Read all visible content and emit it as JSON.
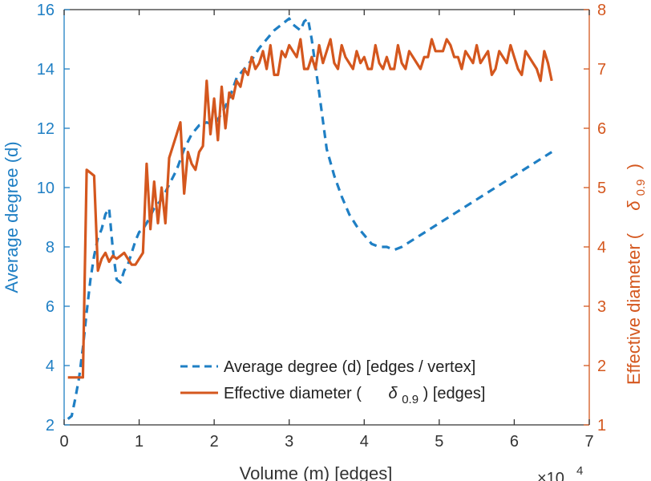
{
  "chart_data": {
    "type": "line",
    "title": "",
    "xlabel": "Volume (m) [edges]",
    "x_exponent_label": "×10",
    "x_exponent_power": "4",
    "xlim": [
      0,
      7
    ],
    "x_ticks": [
      "0",
      "1",
      "2",
      "3",
      "4",
      "5",
      "6",
      "7"
    ],
    "ylabel_left": "Average degree (d)",
    "ylim_left": [
      2,
      16
    ],
    "y_ticks_left": [
      "2",
      "4",
      "6",
      "8",
      "10",
      "12",
      "14",
      "16"
    ],
    "ylabel_right_main": "Effective diameter (",
    "ylabel_right_symbol": "δ",
    "ylabel_right_subscript": "0.9",
    "ylabel_right_close": ")",
    "ylim_right": [
      1,
      8
    ],
    "y_ticks_right": [
      "1",
      "2",
      "3",
      "4",
      "5",
      "6",
      "7",
      "8"
    ],
    "legend": {
      "location": "bottom-right",
      "entry_1": "Average degree (d) [edges / vertex]",
      "entry_2_prefix": "Effective diameter (",
      "entry_2_symbol": "δ",
      "entry_2_subscript": "0.9",
      "entry_2_suffix": ") [edges]"
    },
    "series": [
      {
        "name": "Average degree (d) [edges / vertex]",
        "axis": "left",
        "style": "dashed",
        "color": "#1f7fc4",
        "x": [
          0.05,
          0.1,
          0.15,
          0.2,
          0.25,
          0.3,
          0.35,
          0.4,
          0.45,
          0.5,
          0.55,
          0.6,
          0.65,
          0.7,
          0.75,
          0.8,
          0.85,
          0.9,
          0.95,
          1.0,
          1.05,
          1.1,
          1.2,
          1.3,
          1.4,
          1.5,
          1.6,
          1.7,
          1.8,
          1.9,
          2.0,
          2.1,
          2.2,
          2.3,
          2.4,
          2.5,
          2.6,
          2.7,
          2.8,
          2.9,
          3.0,
          3.05,
          3.1,
          3.15,
          3.2,
          3.25,
          3.3,
          3.4,
          3.5,
          3.6,
          3.7,
          3.8,
          3.9,
          4.0,
          4.1,
          4.2,
          4.3,
          4.4,
          4.5,
          5.0,
          5.5,
          6.0,
          6.5
        ],
        "y": [
          2.2,
          2.3,
          2.9,
          3.6,
          4.6,
          5.8,
          6.9,
          7.7,
          8.3,
          8.6,
          9.1,
          9.3,
          7.9,
          6.9,
          6.8,
          7.2,
          7.4,
          7.8,
          8.2,
          8.5,
          8.6,
          8.8,
          9.3,
          9.6,
          10.1,
          10.6,
          11.3,
          11.8,
          12.1,
          12.2,
          12.1,
          12.5,
          13.0,
          13.7,
          14.0,
          14.3,
          14.7,
          15.0,
          15.3,
          15.5,
          15.7,
          15.5,
          15.4,
          15.3,
          15.6,
          15.7,
          15.0,
          13.2,
          11.3,
          10.4,
          9.7,
          9.1,
          8.7,
          8.4,
          8.1,
          8.0,
          8.0,
          7.9,
          8.0,
          8.8,
          9.6,
          10.4,
          11.2
        ]
      },
      {
        "name": "Effective diameter (δ0.9) [edges]",
        "axis": "right",
        "style": "solid",
        "color": "#d4571e",
        "x": [
          0.05,
          0.1,
          0.15,
          0.2,
          0.25,
          0.3,
          0.35,
          0.4,
          0.45,
          0.5,
          0.55,
          0.6,
          0.65,
          0.7,
          0.75,
          0.8,
          0.85,
          0.9,
          0.95,
          1.0,
          1.05,
          1.1,
          1.15,
          1.2,
          1.25,
          1.3,
          1.35,
          1.4,
          1.45,
          1.5,
          1.55,
          1.6,
          1.65,
          1.7,
          1.75,
          1.8,
          1.85,
          1.9,
          1.95,
          2.0,
          2.05,
          2.1,
          2.15,
          2.2,
          2.25,
          2.3,
          2.35,
          2.4,
          2.45,
          2.5,
          2.55,
          2.6,
          2.65,
          2.7,
          2.75,
          2.8,
          2.85,
          2.9,
          2.95,
          3.0,
          3.05,
          3.1,
          3.15,
          3.2,
          3.25,
          3.3,
          3.35,
          3.4,
          3.45,
          3.5,
          3.55,
          3.6,
          3.65,
          3.7,
          3.75,
          3.8,
          3.85,
          3.9,
          3.95,
          4.0,
          4.05,
          4.1,
          4.15,
          4.2,
          4.25,
          4.3,
          4.35,
          4.4,
          4.45,
          4.5,
          4.55,
          4.6,
          4.65,
          4.7,
          4.75,
          4.8,
          4.85,
          4.9,
          4.95,
          5.0,
          5.05,
          5.1,
          5.15,
          5.2,
          5.25,
          5.3,
          5.35,
          5.4,
          5.45,
          5.5,
          5.55,
          5.6,
          5.65,
          5.7,
          5.75,
          5.8,
          5.85,
          5.9,
          5.95,
          6.0,
          6.05,
          6.1,
          6.15,
          6.2,
          6.25,
          6.3,
          6.35,
          6.4,
          6.45,
          6.5
        ],
        "y": [
          1.8,
          1.8,
          1.8,
          1.8,
          1.8,
          5.3,
          5.25,
          5.2,
          3.6,
          3.8,
          3.9,
          3.75,
          3.85,
          3.8,
          3.85,
          3.9,
          3.8,
          3.7,
          3.7,
          3.8,
          3.9,
          5.4,
          4.3,
          5.1,
          4.4,
          5.0,
          4.4,
          5.5,
          5.7,
          5.9,
          6.1,
          4.9,
          5.6,
          5.4,
          5.3,
          5.6,
          5.7,
          6.8,
          5.9,
          6.5,
          5.8,
          6.7,
          6.0,
          6.6,
          6.5,
          6.8,
          6.7,
          7.0,
          6.9,
          7.2,
          7.0,
          7.1,
          7.3,
          7.0,
          7.4,
          6.9,
          6.9,
          7.3,
          7.2,
          7.4,
          7.3,
          7.2,
          7.5,
          7.0,
          7.0,
          7.2,
          7.0,
          7.4,
          7.1,
          7.3,
          7.5,
          7.1,
          7.0,
          7.4,
          7.2,
          7.1,
          7.0,
          7.3,
          7.1,
          7.2,
          7.0,
          7.0,
          7.4,
          7.1,
          7.0,
          7.2,
          7.0,
          7.0,
          7.4,
          7.1,
          7.0,
          7.3,
          7.2,
          7.1,
          7.0,
          7.2,
          7.2,
          7.5,
          7.3,
          7.3,
          7.3,
          7.5,
          7.4,
          7.2,
          7.2,
          7.0,
          7.3,
          7.2,
          7.1,
          7.4,
          7.1,
          7.2,
          7.3,
          6.9,
          7.0,
          7.3,
          7.2,
          7.1,
          7.4,
          7.2,
          7.0,
          6.9,
          7.3,
          7.2,
          7.1,
          7.0,
          6.8,
          7.3,
          7.1,
          6.8
        ]
      }
    ]
  }
}
